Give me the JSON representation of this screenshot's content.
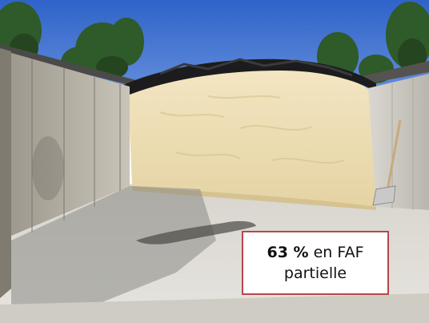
{
  "photo": {
    "subject": "silo-with-pile",
    "colors": {
      "sky": "#3f73d4",
      "pile": "#efe0b8",
      "concrete": "#d9d6cf",
      "tarp": "#1c1c1e",
      "foliage": "#2f5a2a",
      "caption_border": "#b5484c"
    }
  },
  "caption": {
    "value": "63 %",
    "text_after": " en FAF",
    "line2": "partielle"
  }
}
